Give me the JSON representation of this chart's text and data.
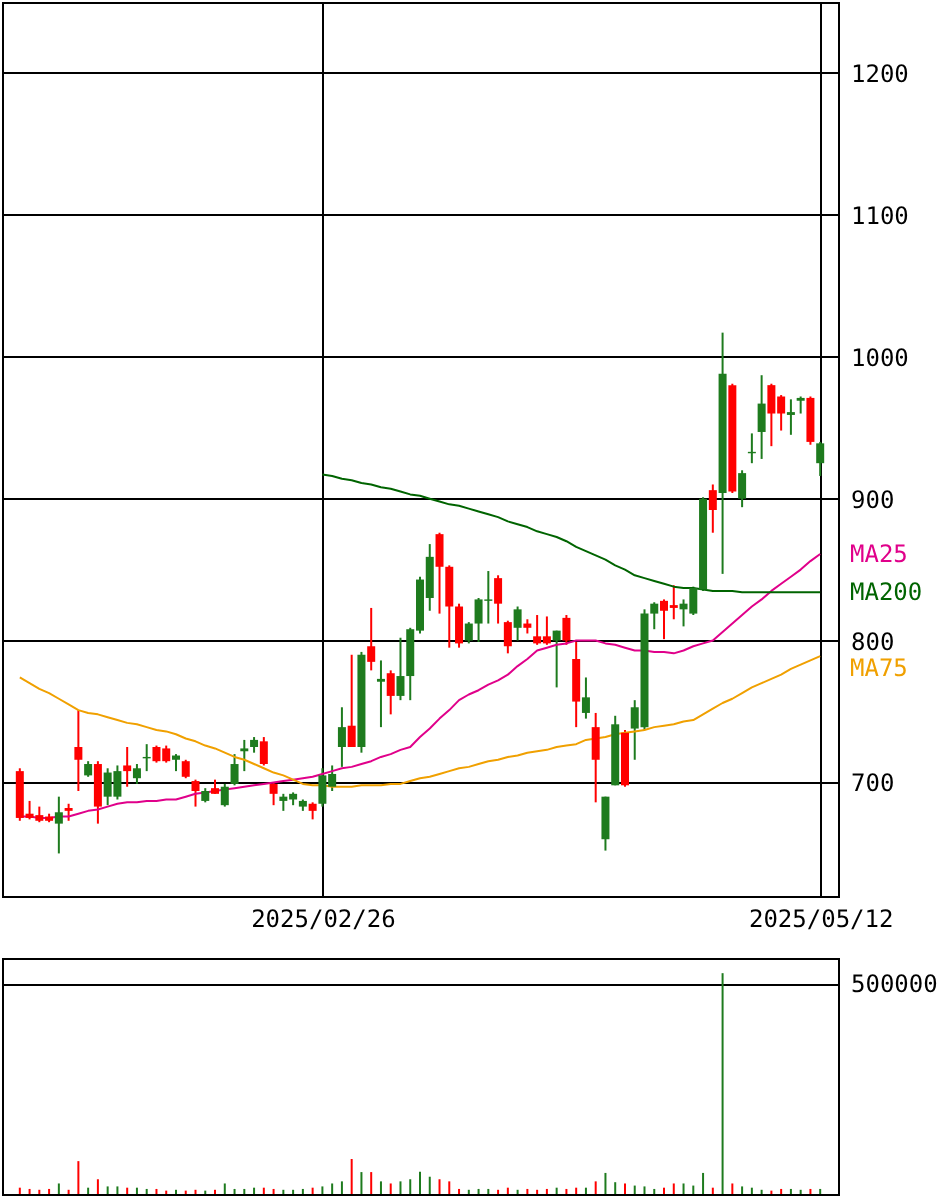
{
  "chart_data": [
    {
      "type": "candlestick",
      "categories": [
        null,
        null,
        null,
        null,
        null,
        null,
        null,
        null,
        null,
        null,
        null,
        null,
        null,
        null,
        null,
        null,
        null,
        null,
        null,
        null,
        null,
        null,
        null,
        null,
        null,
        null,
        null,
        null,
        null,
        null,
        null,
        "2025/02/26",
        null,
        null,
        null,
        null,
        null,
        null,
        null,
        null,
        null,
        null,
        null,
        null,
        null,
        null,
        null,
        null,
        null,
        null,
        null,
        null,
        null,
        null,
        null,
        null,
        null,
        null,
        null,
        null,
        null,
        null,
        null,
        null,
        null,
        null,
        null,
        null,
        null,
        null,
        null,
        null,
        null,
        null,
        null,
        null,
        null,
        null,
        null,
        null,
        null,
        null,
        "2025/05/12"
      ],
      "ohlc": [
        [
          708,
          710,
          673,
          675
        ],
        [
          678,
          687,
          674,
          675
        ],
        [
          677,
          683,
          672,
          673
        ],
        [
          676,
          678,
          672,
          673
        ],
        [
          671,
          690,
          650,
          679
        ],
        [
          682,
          685,
          673,
          680
        ],
        [
          725,
          751,
          694,
          716
        ],
        [
          705,
          715,
          704,
          713
        ],
        [
          713,
          715,
          671,
          683
        ],
        [
          690,
          710,
          684,
          707
        ],
        [
          690,
          712,
          688,
          708
        ],
        [
          712,
          725,
          697,
          708
        ],
        [
          703,
          713,
          699,
          710
        ],
        [
          717,
          727,
          708,
          718
        ],
        [
          725,
          726,
          714,
          715
        ],
        [
          724,
          726,
          714,
          715
        ],
        [
          716,
          720,
          708,
          719
        ],
        [
          715,
          716,
          703,
          704
        ],
        [
          701,
          702,
          683,
          694
        ],
        [
          687,
          696,
          686,
          694
        ],
        [
          696,
          702,
          692,
          692
        ],
        [
          684,
          699,
          683,
          697
        ],
        [
          699,
          720,
          698,
          713
        ],
        [
          722,
          730,
          708,
          724
        ],
        [
          725,
          732,
          721,
          730
        ],
        [
          729,
          732,
          712,
          713
        ],
        [
          699,
          700,
          684,
          692
        ],
        [
          687,
          692,
          680,
          690
        ],
        [
          688,
          693,
          684,
          692
        ],
        [
          683,
          688,
          680,
          687
        ],
        [
          685,
          686,
          674,
          680
        ],
        [
          685,
          710,
          683,
          705
        ],
        [
          697,
          712,
          694,
          706
        ],
        [
          725,
          753,
          711,
          739
        ],
        [
          740,
          790,
          725,
          725
        ],
        [
          725,
          792,
          721,
          790
        ],
        [
          796,
          823,
          779,
          785
        ],
        [
          771,
          786,
          739,
          773
        ],
        [
          777,
          779,
          748,
          761
        ],
        [
          761,
          802,
          758,
          775
        ],
        [
          775,
          809,
          758,
          808
        ],
        [
          807,
          845,
          805,
          843
        ],
        [
          830,
          868,
          821,
          859
        ],
        [
          875,
          876,
          819,
          852
        ],
        [
          852,
          853,
          795,
          824
        ],
        [
          824,
          826,
          795,
          798
        ],
        [
          800,
          813,
          798,
          812
        ],
        [
          812,
          830,
          799,
          829
        ],
        [
          828,
          849,
          812,
          829
        ],
        [
          844,
          846,
          812,
          826
        ],
        [
          813,
          814,
          791,
          796
        ],
        [
          809,
          824,
          800,
          822
        ],
        [
          812,
          815,
          805,
          809
        ],
        [
          803,
          818,
          797,
          798
        ],
        [
          803,
          817,
          797,
          798
        ],
        [
          800,
          807,
          767,
          807
        ],
        [
          816,
          818,
          797,
          800
        ],
        [
          787,
          799,
          739,
          757
        ],
        [
          749,
          774,
          745,
          760
        ],
        [
          739,
          749,
          686,
          716
        ],
        [
          660,
          690,
          652,
          690
        ],
        [
          698,
          747,
          698,
          741
        ],
        [
          735,
          737,
          697,
          698
        ],
        [
          738,
          758,
          716,
          753
        ],
        [
          739,
          822,
          737,
          819
        ],
        [
          819,
          827,
          808,
          826
        ],
        [
          828,
          829,
          801,
          821
        ],
        [
          825,
          839,
          815,
          823
        ],
        [
          822,
          829,
          810,
          826
        ],
        [
          819,
          838,
          818,
          837
        ],
        [
          836,
          901,
          835,
          900
        ],
        [
          906,
          910,
          876,
          892
        ],
        [
          904,
          1017,
          847,
          988
        ],
        [
          980,
          981,
          904,
          905
        ],
        [
          900,
          920,
          894,
          918
        ],
        [
          932,
          946,
          925,
          933
        ],
        [
          947,
          987,
          928,
          967
        ],
        [
          980,
          981,
          937,
          960
        ],
        [
          972,
          973,
          948,
          960
        ],
        [
          959,
          970,
          945,
          961
        ],
        [
          969,
          972,
          960,
          971
        ],
        [
          971,
          972,
          938,
          940
        ],
        [
          925,
          940,
          916,
          939
        ]
      ],
      "colors": [
        "#ff0000",
        "#ff0000",
        "#ff0000",
        "#ff0000",
        "#1e7b1e",
        "#ff0000",
        "#ff0000",
        "#1e7b1e",
        "#ff0000",
        "#1e7b1e",
        "#1e7b1e",
        "#ff0000",
        "#1e7b1e",
        "#1e7b1e",
        "#ff0000",
        "#ff0000",
        "#1e7b1e",
        "#ff0000",
        "#ff0000",
        "#1e7b1e",
        "#ff0000",
        "#1e7b1e",
        "#1e7b1e",
        "#1e7b1e",
        "#1e7b1e",
        "#ff0000",
        "#ff0000",
        "#1e7b1e",
        "#1e7b1e",
        "#1e7b1e",
        "#ff0000",
        "#1e7b1e",
        "#1e7b1e",
        "#1e7b1e",
        "#ff0000",
        "#1e7b1e",
        "#ff0000",
        "#1e7b1e",
        "#ff0000",
        "#1e7b1e",
        "#1e7b1e",
        "#1e7b1e",
        "#1e7b1e",
        "#ff0000",
        "#ff0000",
        "#ff0000",
        "#1e7b1e",
        "#1e7b1e",
        "#1e7b1e",
        "#ff0000",
        "#ff0000",
        "#1e7b1e",
        "#ff0000",
        "#ff0000",
        "#ff0000",
        "#1e7b1e",
        "#ff0000",
        "#ff0000",
        "#1e7b1e",
        "#ff0000",
        "#1e7b1e",
        "#1e7b1e",
        "#ff0000",
        "#1e7b1e",
        "#1e7b1e",
        "#1e7b1e",
        "#ff0000",
        "#ff0000",
        "#1e7b1e",
        "#1e7b1e",
        "#1e7b1e",
        "#ff0000",
        "#1e7b1e",
        "#ff0000",
        "#1e7b1e",
        "#1e7b1e",
        "#1e7b1e",
        "#ff0000",
        "#ff0000",
        "#1e7b1e",
        "#1e7b1e",
        "#ff0000",
        "#1e7b1e"
      ],
      "series": [
        {
          "name": "MA25",
          "type": "line",
          "color": "#e0008a",
          "values": [
            676,
            676,
            675,
            675,
            676,
            676,
            678,
            680,
            681,
            683,
            685,
            686,
            686,
            687,
            687,
            688,
            688,
            690,
            692,
            693,
            694,
            695,
            696,
            697,
            698,
            699,
            700,
            701,
            702,
            703,
            704,
            706,
            708,
            710,
            711,
            713,
            715,
            718,
            720,
            723,
            725,
            732,
            738,
            745,
            751,
            758,
            762,
            765,
            769,
            772,
            776,
            782,
            787,
            793,
            795,
            797,
            798,
            800,
            800,
            800,
            798,
            797,
            795,
            793,
            793,
            792,
            792,
            791,
            793,
            796,
            798,
            800,
            806,
            812,
            818,
            824,
            829,
            835,
            840,
            845,
            850,
            856,
            861
          ]
        },
        {
          "name": "MA200",
          "type": "line",
          "color": "#006400",
          "values": [
            null,
            null,
            null,
            null,
            null,
            null,
            null,
            null,
            null,
            null,
            null,
            null,
            null,
            null,
            null,
            null,
            null,
            null,
            null,
            null,
            null,
            null,
            null,
            null,
            null,
            null,
            null,
            null,
            null,
            null,
            null,
            917,
            916,
            914,
            913,
            911,
            910,
            908,
            907,
            905,
            903,
            902,
            900,
            898,
            896,
            895,
            893,
            891,
            889,
            887,
            884,
            882,
            880,
            877,
            875,
            873,
            870,
            866,
            863,
            860,
            857,
            853,
            850,
            846,
            844,
            842,
            840,
            838,
            837,
            837,
            836,
            835,
            835,
            835,
            834,
            834,
            834,
            834,
            834,
            834,
            834,
            834,
            834
          ]
        },
        {
          "name": "MA75",
          "type": "line",
          "color": "#f0a000",
          "values": [
            774,
            770,
            766,
            763,
            759,
            755,
            751,
            749,
            748,
            746,
            744,
            742,
            741,
            739,
            737,
            736,
            734,
            731,
            729,
            726,
            724,
            721,
            718,
            716,
            713,
            710,
            707,
            705,
            702,
            699,
            698,
            698,
            697,
            697,
            697,
            698,
            698,
            698,
            699,
            699,
            701,
            703,
            704,
            706,
            708,
            710,
            711,
            713,
            715,
            716,
            718,
            719,
            721,
            722,
            723,
            725,
            726,
            727,
            730,
            731,
            732,
            734,
            735,
            736,
            737,
            739,
            740,
            741,
            743,
            744,
            748,
            752,
            756,
            759,
            763,
            767,
            770,
            773,
            776,
            780,
            783,
            786,
            789
          ]
        }
      ],
      "ylim": [
        620,
        1250
      ],
      "yticks": [
        700,
        800,
        900,
        1000,
        1100,
        1200
      ],
      "grid": true
    },
    {
      "type": "bar",
      "categories": [
        null,
        null,
        null,
        null,
        null,
        null,
        null,
        null,
        null,
        null,
        null,
        null,
        null,
        null,
        null,
        null,
        null,
        null,
        null,
        null,
        null,
        null,
        null,
        null,
        null,
        null,
        null,
        null,
        null,
        null,
        null,
        "2025/02/26",
        null,
        null,
        null,
        null,
        null,
        null,
        null,
        null,
        null,
        null,
        null,
        null,
        null,
        null,
        null,
        null,
        null,
        null,
        null,
        null,
        null,
        null,
        null,
        null,
        null,
        null,
        null,
        null,
        null,
        null,
        null,
        null,
        null,
        null,
        null,
        null,
        null,
        null,
        null,
        null,
        null,
        null,
        null,
        null,
        null,
        null,
        null,
        null,
        null,
        null,
        "2025/05/12"
      ],
      "values": [
        15000,
        12000,
        10000,
        12000,
        25000,
        10000,
        78000,
        15000,
        35000,
        18000,
        18000,
        15000,
        15000,
        12000,
        12000,
        8000,
        10000,
        8000,
        10000,
        8000,
        10000,
        25000,
        12000,
        12000,
        15000,
        15000,
        12000,
        10000,
        10000,
        12000,
        15000,
        18000,
        25000,
        30000,
        83000,
        52000,
        52000,
        30000,
        25000,
        30000,
        35000,
        53000,
        41000,
        35000,
        30000,
        12000,
        10000,
        12000,
        12000,
        10000,
        15000,
        10000,
        12000,
        10000,
        12000,
        15000,
        12000,
        15000,
        15000,
        30000,
        50000,
        28000,
        25000,
        20000,
        18000,
        12000,
        15000,
        25000,
        25000,
        20000,
        50000,
        15000,
        524000,
        25000,
        18000,
        15000,
        10000,
        8000,
        12000,
        12000,
        10000,
        12000,
        12000
      ],
      "colors": [
        "#ff0000",
        "#ff0000",
        "#ff0000",
        "#ff0000",
        "#1e7b1e",
        "#ff0000",
        "#ff0000",
        "#1e7b1e",
        "#ff0000",
        "#1e7b1e",
        "#1e7b1e",
        "#ff0000",
        "#1e7b1e",
        "#1e7b1e",
        "#ff0000",
        "#ff0000",
        "#1e7b1e",
        "#ff0000",
        "#ff0000",
        "#1e7b1e",
        "#ff0000",
        "#1e7b1e",
        "#1e7b1e",
        "#1e7b1e",
        "#1e7b1e",
        "#ff0000",
        "#ff0000",
        "#1e7b1e",
        "#1e7b1e",
        "#1e7b1e",
        "#ff0000",
        "#1e7b1e",
        "#1e7b1e",
        "#1e7b1e",
        "#ff0000",
        "#1e7b1e",
        "#ff0000",
        "#1e7b1e",
        "#ff0000",
        "#1e7b1e",
        "#1e7b1e",
        "#1e7b1e",
        "#1e7b1e",
        "#ff0000",
        "#ff0000",
        "#ff0000",
        "#1e7b1e",
        "#1e7b1e",
        "#1e7b1e",
        "#ff0000",
        "#ff0000",
        "#1e7b1e",
        "#ff0000",
        "#ff0000",
        "#ff0000",
        "#1e7b1e",
        "#ff0000",
        "#ff0000",
        "#1e7b1e",
        "#ff0000",
        "#1e7b1e",
        "#1e7b1e",
        "#ff0000",
        "#1e7b1e",
        "#1e7b1e",
        "#1e7b1e",
        "#ff0000",
        "#ff0000",
        "#1e7b1e",
        "#1e7b1e",
        "#1e7b1e",
        "#ff0000",
        "#1e7b1e",
        "#ff0000",
        "#1e7b1e",
        "#1e7b1e",
        "#1e7b1e",
        "#ff0000",
        "#ff0000",
        "#1e7b1e",
        "#1e7b1e",
        "#ff0000",
        "#1e7b1e"
      ],
      "ylim": [
        0,
        560000
      ],
      "yticks": [
        500000
      ],
      "grid": "y",
      "tick_labels": "y"
    }
  ]
}
